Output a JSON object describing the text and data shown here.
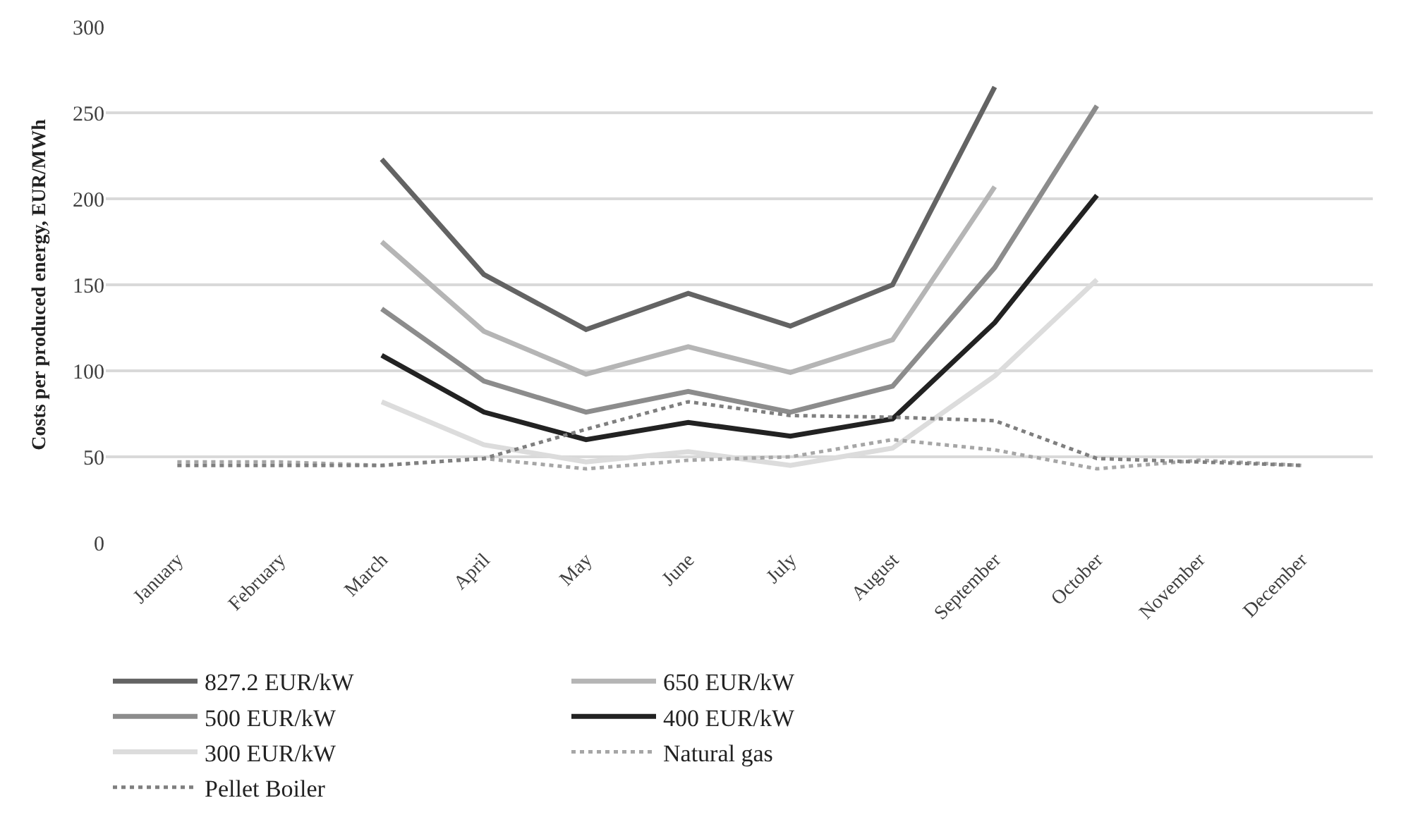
{
  "chart_data": {
    "type": "line",
    "ylabel": "Costs per produced energy, EUR/MWh",
    "categories": [
      "January",
      "February",
      "March",
      "April",
      "May",
      "June",
      "July",
      "August",
      "September",
      "October",
      "November",
      "December"
    ],
    "series": [
      {
        "name": "827.2 EUR/kW",
        "color": "#636363",
        "line_style": "solid",
        "values": [
          null,
          null,
          223,
          156,
          124,
          145,
          126,
          150,
          265,
          null,
          null,
          null
        ]
      },
      {
        "name": "650 EUR/kW",
        "color": "#b5b5b5",
        "line_style": "solid",
        "values": [
          null,
          null,
          175,
          123,
          98,
          114,
          99,
          118,
          207,
          null,
          null,
          null
        ]
      },
      {
        "name": "500 EUR/kW",
        "color": "#8c8c8c",
        "line_style": "solid",
        "values": [
          null,
          null,
          136,
          94,
          76,
          88,
          76,
          91,
          160,
          254,
          null,
          null
        ]
      },
      {
        "name": "400 EUR/kW",
        "color": "#222222",
        "line_style": "solid",
        "values": [
          null,
          null,
          109,
          76,
          60,
          70,
          62,
          72,
          128,
          202,
          null,
          null
        ]
      },
      {
        "name": "300 EUR/kW",
        "color": "#dcdcdc",
        "line_style": "solid",
        "values": [
          null,
          null,
          82,
          57,
          47,
          53,
          45,
          55,
          97,
          153,
          null,
          null
        ]
      },
      {
        "name": "Natural gas",
        "color": "#a6a6a6",
        "line_style": "dotted",
        "values": [
          47,
          47,
          45,
          49,
          43,
          48,
          50,
          60,
          54,
          43,
          48,
          45
        ]
      },
      {
        "name": "Pellet Boiler",
        "color": "#7f7f7f",
        "line_style": "dotted",
        "values": [
          45,
          45,
          45,
          49,
          66,
          82,
          74,
          73,
          71,
          49,
          47,
          45
        ]
      }
    ],
    "ylim": [
      0,
      300
    ],
    "yticks": [
      0,
      50,
      100,
      150,
      200,
      250,
      300
    ],
    "grid": "y",
    "legend": "bottom",
    "marker": "none"
  }
}
